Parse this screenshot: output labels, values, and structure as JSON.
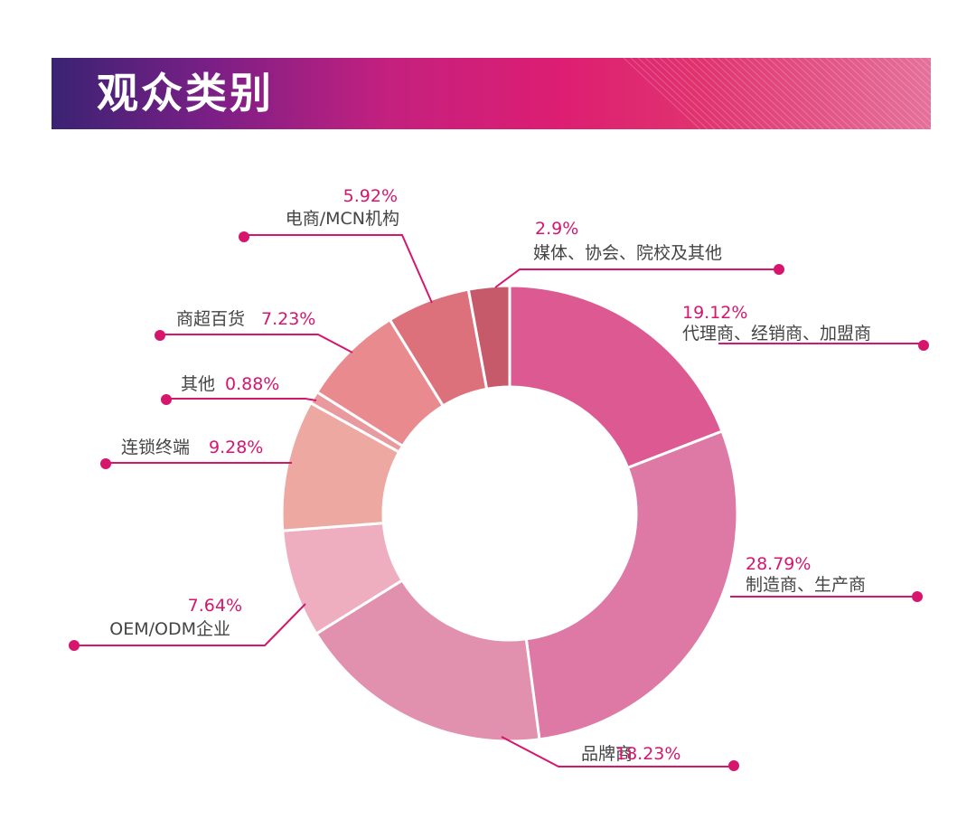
{
  "header": {
    "title": "观众类别"
  },
  "chart_data": {
    "type": "pie",
    "title": "",
    "slices": [
      {
        "label": "代理商、经销商、加盟商",
        "value": 19.12,
        "value_label": "19.12%",
        "color": "#dc5a91"
      },
      {
        "label": "制造商、生产商",
        "value": 28.79,
        "value_label": "28.79%",
        "color": "#dd79a4"
      },
      {
        "label": "品牌商",
        "value": 18.23,
        "value_label": "18.23%",
        "color": "#e190ae"
      },
      {
        "label": "OEM/ODM企业",
        "value": 7.64,
        "value_label": "7.64%",
        "color": "#eeaec0"
      },
      {
        "label": "连锁终端",
        "value": 9.28,
        "value_label": "9.28%",
        "color": "#eca8a1"
      },
      {
        "label": "其他",
        "value": 0.88,
        "value_label": "0.88%",
        "color": "#e99a9e"
      },
      {
        "label": "商超百货",
        "value": 7.23,
        "value_label": "7.23%",
        "color": "#e98a8f"
      },
      {
        "label": "电商/MCN机构",
        "value": 5.92,
        "value_label": "5.92%",
        "color": "#dd717b"
      },
      {
        "label": "媒体、协会、院校及其他",
        "value": 2.9,
        "value_label": "2.9%",
        "color": "#c65a6a"
      }
    ],
    "accent_color": "#d6166c"
  }
}
